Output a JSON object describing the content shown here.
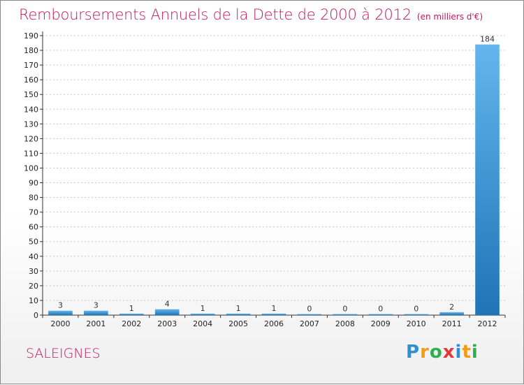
{
  "title": "Remboursements Annuels de la Dette de 2000 à 2012",
  "subtitle": "(en milliers d'€)",
  "commune": "SALEIGNES",
  "logo": {
    "text": "Proxiti",
    "letters": [
      {
        "ch": "P",
        "color": "#2e8fd1"
      },
      {
        "ch": "r",
        "color": "#f39c12"
      },
      {
        "ch": "o",
        "color": "#2eae4e"
      },
      {
        "ch": "x",
        "color": "#e53935"
      },
      {
        "ch": "i",
        "color": "#2e8fd1"
      },
      {
        "ch": "t",
        "color": "#f39c12"
      },
      {
        "ch": "i",
        "color": "#2eae4e"
      }
    ]
  },
  "colors": {
    "title": "#c2185b",
    "bar_light": "#63b6ee",
    "bar_dark": "#1e74b5",
    "grid": "#c8c8c8",
    "axis": "#333333"
  },
  "chart_data": {
    "type": "bar",
    "categories": [
      "2000",
      "2001",
      "2002",
      "2003",
      "2004",
      "2005",
      "2006",
      "2007",
      "2008",
      "2009",
      "2010",
      "2011",
      "2012"
    ],
    "values": [
      3,
      3,
      1,
      4,
      1,
      1,
      1,
      0,
      0,
      0,
      0,
      2,
      184
    ],
    "data_labels": [
      "3",
      "3",
      "1",
      "4",
      "1",
      "1",
      "1",
      "0",
      "0",
      "0",
      "0",
      "2",
      "184"
    ],
    "ylim": [
      0,
      190
    ],
    "yticks": [
      0,
      10,
      20,
      30,
      40,
      50,
      60,
      70,
      80,
      90,
      100,
      110,
      120,
      130,
      140,
      150,
      160,
      170,
      180,
      190
    ],
    "grid": true
  }
}
